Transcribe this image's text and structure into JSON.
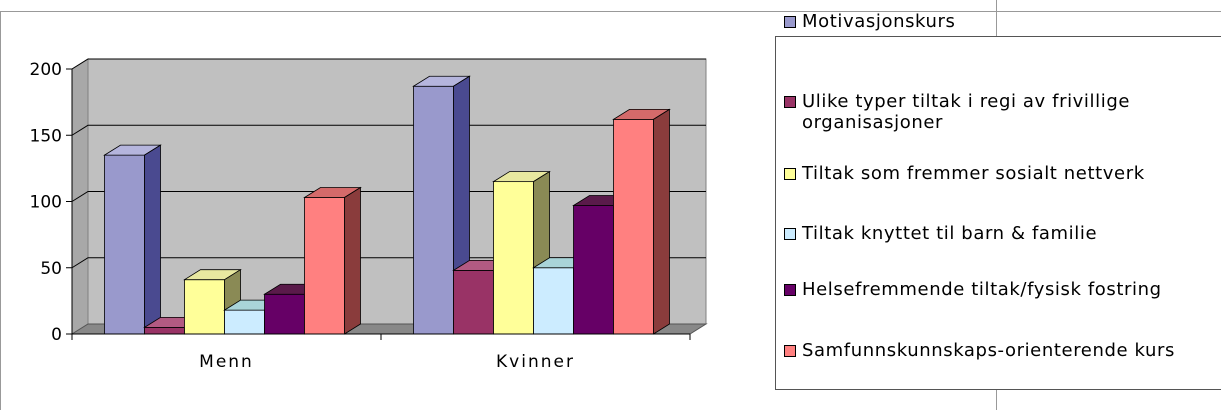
{
  "chart_data": {
    "type": "bar",
    "three_d": true,
    "categories": [
      "Menn",
      "Kvinner"
    ],
    "series": [
      {
        "name": "Motivasjonskurs",
        "values": [
          135,
          187
        ],
        "color": "#9999cc",
        "side": "#4a4a90",
        "top": "#b5b5dd"
      },
      {
        "name": "Ulike typer tiltak i regi av frivillige organisasjoner",
        "values": [
          5,
          48
        ],
        "color": "#993366",
        "side": "#5a1d3c",
        "top": "#b25a82"
      },
      {
        "name": "Tiltak som fremmer sosialt nettverk",
        "values": [
          41,
          115
        ],
        "color": "#ffff99",
        "side": "#8a8a55",
        "top": "#e8e8a0"
      },
      {
        "name": "Tiltak knyttet til barn & familie",
        "values": [
          18,
          50
        ],
        "color": "#ccecff",
        "side": "#7ea7b5",
        "top": "#a9d4d8"
      },
      {
        "name": "Helsefremmende tiltak/fysisk fostring",
        "values": [
          30,
          97
        ],
        "color": "#660066",
        "side": "#330033",
        "top": "#5a1a4a"
      },
      {
        "name": "Samfunnskunnskaps-orienterende kurs",
        "values": [
          103,
          162
        ],
        "color": "#ff8080",
        "side": "#8a3c3c",
        "top": "#d46a6a"
      }
    ],
    "yticks": [
      0,
      50,
      100,
      150,
      200
    ],
    "ylim": [
      0,
      200
    ],
    "grid": true,
    "legend_position": "right"
  }
}
